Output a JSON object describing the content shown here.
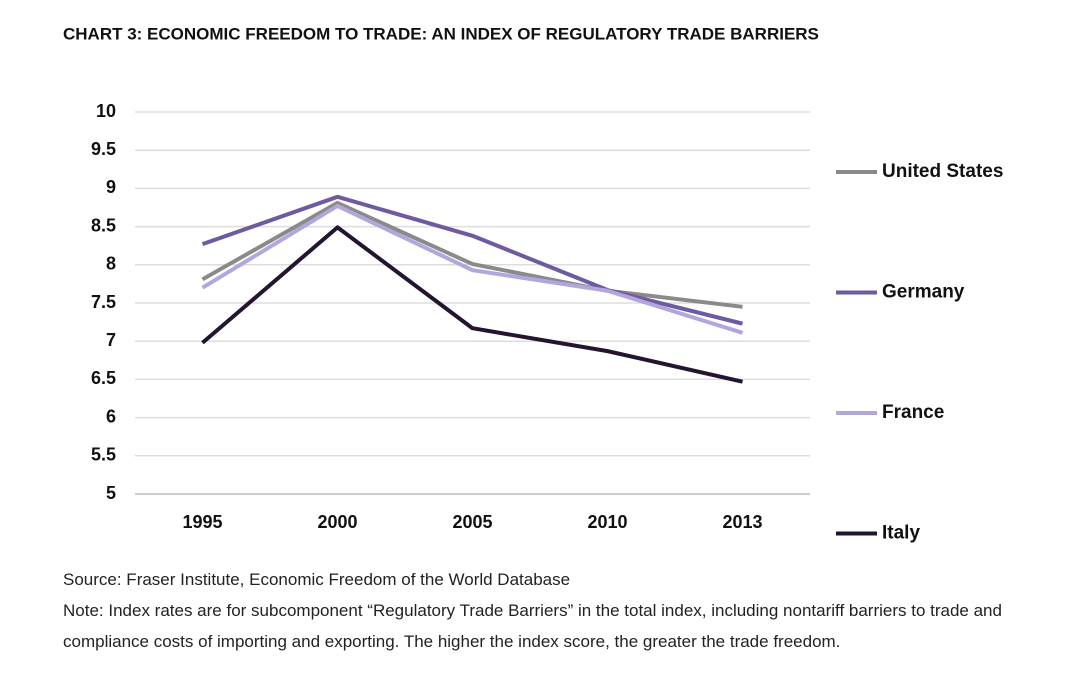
{
  "chart_data": {
    "type": "line",
    "title": "CHART 3: ECONOMIC FREEDOM TO TRADE: AN INDEX OF REGULATORY TRADE BARRIERS",
    "categories": [
      "1995",
      "2000",
      "2005",
      "2010",
      "2013"
    ],
    "series": [
      {
        "name": "United States",
        "color": "#8a8a8a",
        "values": [
          7.81,
          8.81,
          8.01,
          7.66,
          7.45
        ]
      },
      {
        "name": "Germany",
        "color": "#6e5aa0",
        "values": [
          8.27,
          8.89,
          8.38,
          7.67,
          7.23
        ]
      },
      {
        "name": "France",
        "color": "#b3a6dc",
        "values": [
          7.7,
          8.77,
          7.93,
          7.66,
          7.11
        ]
      },
      {
        "name": "Italy",
        "color": "#231531",
        "values": [
          6.98,
          8.49,
          7.17,
          6.87,
          6.47
        ]
      }
    ],
    "ylim": [
      5,
      10
    ],
    "yticks": [
      10,
      9.5,
      9,
      8.5,
      8,
      7.5,
      7,
      6.5,
      6,
      5.5,
      5
    ],
    "grid": true,
    "legend": "right",
    "source": "Source: Fraser Institute, Economic Freedom of the World Database",
    "note": "Note: Index rates are for subcomponent “Regulatory Trade Barriers” in the total index, including nontariff barriers to trade and compliance costs of importing and exporting. The higher the index score, the greater the trade freedom."
  }
}
